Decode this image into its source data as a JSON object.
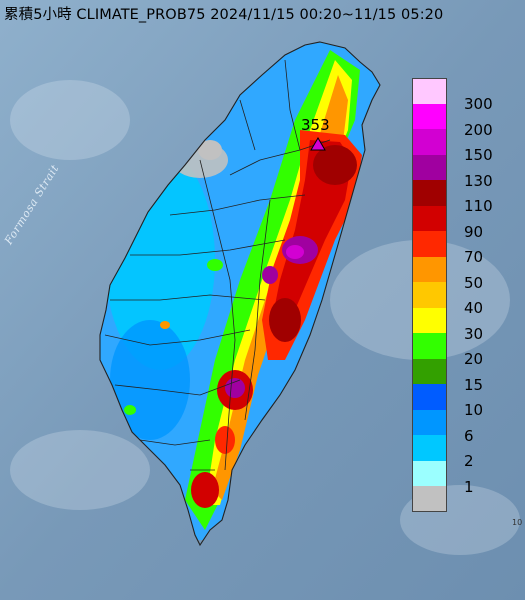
{
  "title": "累積5小時 CLIMATE_PROB75 2024/11/15 00:20~11/15 05:20",
  "map": {
    "strait_label": "Formosa Strait",
    "peak_value": "353",
    "colors": {
      "sea": "#7f9fbd",
      "land_low": "#30a8ff",
      "outline": "#222222"
    }
  },
  "legend": {
    "items": [
      {
        "label": "300",
        "color": "#ffc8ff"
      },
      {
        "label": "200",
        "color": "#ff00ff"
      },
      {
        "label": "150",
        "color": "#d200d2"
      },
      {
        "label": "130",
        "color": "#a000a0"
      },
      {
        "label": "110",
        "color": "#a00000"
      },
      {
        "label": "90",
        "color": "#d20000"
      },
      {
        "label": "70",
        "color": "#ff2800"
      },
      {
        "label": "50",
        "color": "#ff9600"
      },
      {
        "label": "40",
        "color": "#ffc800"
      },
      {
        "label": "30",
        "color": "#ffff00"
      },
      {
        "label": "20",
        "color": "#32ff00"
      },
      {
        "label": "15",
        "color": "#33a000"
      },
      {
        "label": "10",
        "color": "#005cff"
      },
      {
        "label": "6",
        "color": "#0096ff"
      },
      {
        "label": "2",
        "color": "#00c8ff"
      },
      {
        "label": "1",
        "color": "#9bffff"
      },
      {
        "label": "",
        "color": "#c1c1c1"
      }
    ]
  }
}
